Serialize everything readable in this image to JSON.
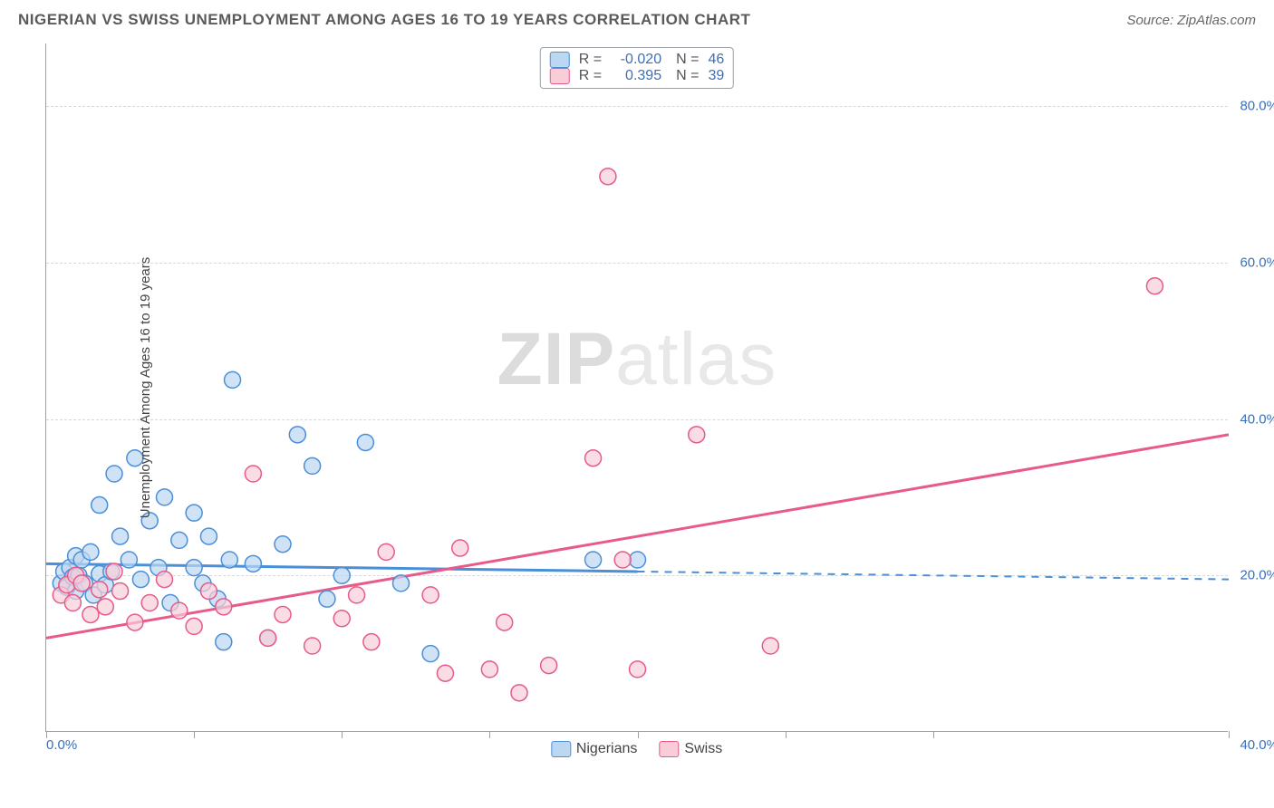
{
  "title": "NIGERIAN VS SWISS UNEMPLOYMENT AMONG AGES 16 TO 19 YEARS CORRELATION CHART",
  "source": "Source: ZipAtlas.com",
  "y_axis_title": "Unemployment Among Ages 16 to 19 years",
  "watermark_a": "ZIP",
  "watermark_b": "atlas",
  "chart": {
    "type": "scatter-correlation",
    "background_color": "#ffffff",
    "grid_color": "#d8d8d8",
    "axis_color": "#a0a0a0",
    "label_color": "#3b6fb6",
    "title_color": "#5a5a5a",
    "title_fontsize": 17,
    "label_fontsize": 15,
    "xlim": [
      0,
      40
    ],
    "ylim": [
      0,
      88
    ],
    "x_ticks": [
      0,
      5,
      10,
      15,
      20,
      25,
      30,
      40
    ],
    "x_tick_labels": {
      "0": "0.0%",
      "40": "40.0%"
    },
    "y_ticks": [
      20,
      40,
      60,
      80
    ],
    "y_tick_labels": {
      "20": "20.0%",
      "40": "40.0%",
      "60": "60.0%",
      "80": "80.0%"
    },
    "marker_radius": 9,
    "marker_stroke_width": 1.5,
    "series": [
      {
        "name": "Nigerians",
        "fill": "#bcd7f2",
        "stroke": "#4a8fd8",
        "regression": {
          "intercept": 21.5,
          "slope_per_xunit": -0.05,
          "x_solid_end": 20,
          "x_dashed_end": 40,
          "width": 3
        },
        "r": "-0.020",
        "n": "46",
        "points": [
          [
            0.5,
            19
          ],
          [
            0.6,
            20.5
          ],
          [
            0.7,
            18.5
          ],
          [
            0.8,
            21
          ],
          [
            0.9,
            19.8
          ],
          [
            1.0,
            22.5
          ],
          [
            1.0,
            18
          ],
          [
            1.1,
            20
          ],
          [
            1.2,
            22
          ],
          [
            1.3,
            19
          ],
          [
            1.5,
            23
          ],
          [
            1.6,
            17.5
          ],
          [
            1.8,
            20.2
          ],
          [
            1.8,
            29
          ],
          [
            2.0,
            18.8
          ],
          [
            2.2,
            20.5
          ],
          [
            2.3,
            33
          ],
          [
            2.5,
            25
          ],
          [
            2.8,
            22
          ],
          [
            3.0,
            35
          ],
          [
            3.2,
            19.5
          ],
          [
            3.5,
            27
          ],
          [
            3.8,
            21
          ],
          [
            4.0,
            30
          ],
          [
            4.2,
            16.5
          ],
          [
            4.5,
            24.5
          ],
          [
            5.0,
            28
          ],
          [
            5.0,
            21
          ],
          [
            5.3,
            19
          ],
          [
            5.5,
            25
          ],
          [
            5.8,
            17
          ],
          [
            6.0,
            11.5
          ],
          [
            6.2,
            22
          ],
          [
            6.3,
            45
          ],
          [
            7.0,
            21.5
          ],
          [
            7.5,
            12
          ],
          [
            8.0,
            24
          ],
          [
            8.5,
            38
          ],
          [
            9.0,
            34
          ],
          [
            9.5,
            17
          ],
          [
            10.0,
            20
          ],
          [
            10.8,
            37
          ],
          [
            12.0,
            19
          ],
          [
            13.0,
            10
          ],
          [
            18.5,
            22
          ],
          [
            20.0,
            22
          ]
        ]
      },
      {
        "name": "Swiss",
        "fill": "#f8cdd8",
        "stroke": "#e75a8a",
        "regression": {
          "intercept": 12.0,
          "slope_per_xunit": 0.65,
          "x_solid_end": 40,
          "x_dashed_end": 40,
          "width": 3
        },
        "r": "0.395",
        "n": "39",
        "points": [
          [
            0.5,
            17.5
          ],
          [
            0.7,
            18.8
          ],
          [
            0.9,
            16.5
          ],
          [
            1.0,
            20
          ],
          [
            1.2,
            19
          ],
          [
            1.5,
            15
          ],
          [
            1.8,
            18.2
          ],
          [
            2.0,
            16
          ],
          [
            2.3,
            20.5
          ],
          [
            2.5,
            18
          ],
          [
            3.0,
            14
          ],
          [
            3.5,
            16.5
          ],
          [
            4.0,
            19.5
          ],
          [
            4.5,
            15.5
          ],
          [
            5.0,
            13.5
          ],
          [
            5.5,
            18
          ],
          [
            6.0,
            16
          ],
          [
            7.0,
            33
          ],
          [
            7.5,
            12
          ],
          [
            8.0,
            15
          ],
          [
            9.0,
            11
          ],
          [
            10.0,
            14.5
          ],
          [
            10.5,
            17.5
          ],
          [
            11.0,
            11.5
          ],
          [
            11.5,
            23
          ],
          [
            13.0,
            17.5
          ],
          [
            13.5,
            7.5
          ],
          [
            14.0,
            23.5
          ],
          [
            15.0,
            8
          ],
          [
            15.5,
            14
          ],
          [
            16.0,
            5
          ],
          [
            17.0,
            8.5
          ],
          [
            18.5,
            35
          ],
          [
            19.0,
            71
          ],
          [
            19.5,
            22
          ],
          [
            20.0,
            8
          ],
          [
            22.0,
            38
          ],
          [
            24.5,
            11
          ],
          [
            37.5,
            57
          ]
        ]
      }
    ]
  },
  "legend_top": {
    "rows": [
      {
        "swatch_fill": "#bcd7f2",
        "swatch_stroke": "#4a8fd8",
        "r": "-0.020",
        "n": "46"
      },
      {
        "swatch_fill": "#f8cdd8",
        "swatch_stroke": "#e75a8a",
        "r": "0.395",
        "n": "39"
      }
    ]
  },
  "legend_bottom": [
    {
      "label": "Nigerians",
      "swatch_fill": "#bcd7f2",
      "swatch_stroke": "#4a8fd8"
    },
    {
      "label": "Swiss",
      "swatch_fill": "#f8cdd8",
      "swatch_stroke": "#e75a8a"
    }
  ]
}
